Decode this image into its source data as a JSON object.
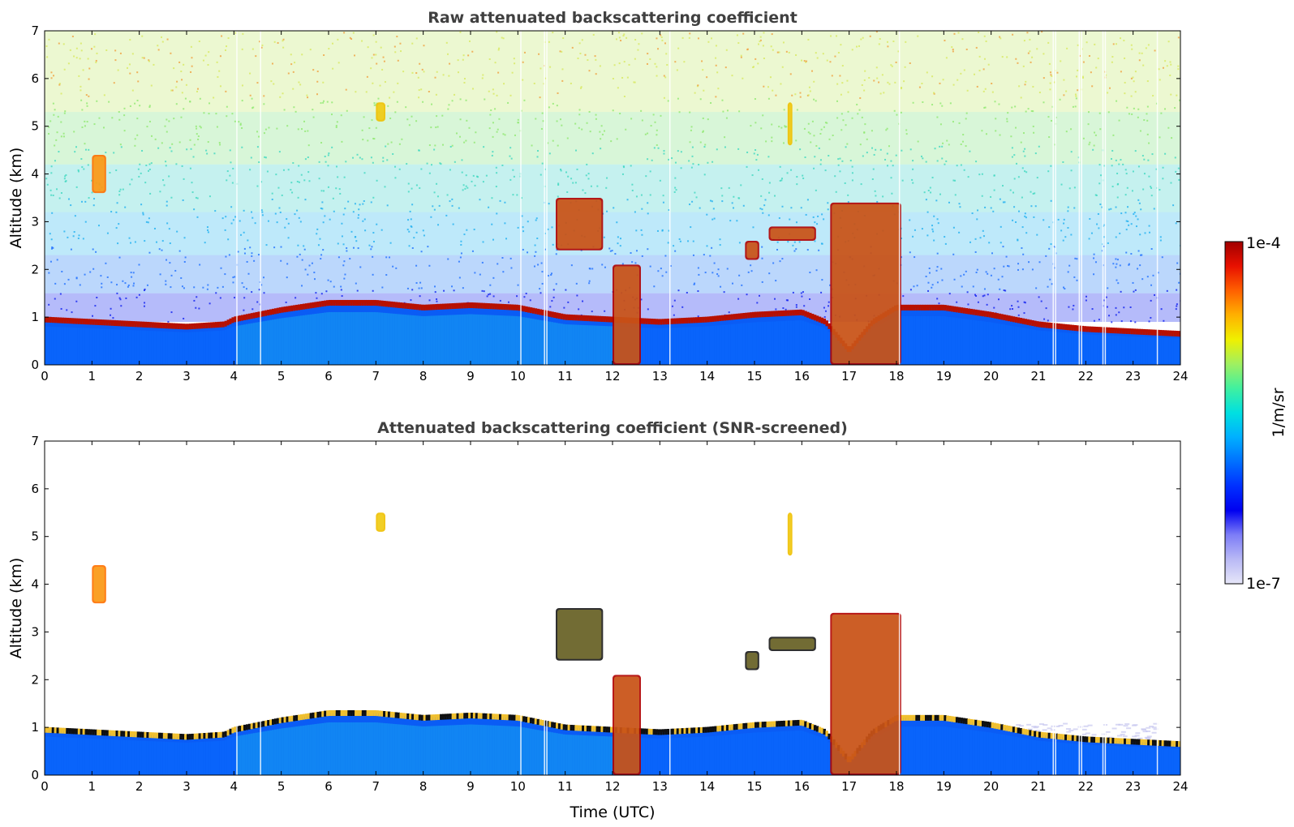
{
  "chart_data": [
    {
      "type": "heatmap",
      "title": "Raw attenuated backscattering coefficient",
      "xlabel": "",
      "ylabel": "Altitude (km)",
      "xlim": [
        0,
        24
      ],
      "ylim": [
        0,
        7
      ],
      "x_ticks": [
        "0",
        "1",
        "2",
        "3",
        "4",
        "5",
        "6",
        "7",
        "8",
        "9",
        "10",
        "11",
        "12",
        "13",
        "14",
        "15",
        "16",
        "17",
        "18",
        "19",
        "20",
        "21",
        "22",
        "23",
        "24"
      ],
      "y_ticks": [
        "0",
        "1",
        "2",
        "3",
        "4",
        "5",
        "6",
        "7"
      ],
      "boundary_layer_top_km": [
        [
          0,
          0.95
        ],
        [
          1,
          0.9
        ],
        [
          2,
          0.85
        ],
        [
          3,
          0.8
        ],
        [
          3.8,
          0.85
        ],
        [
          4,
          0.95
        ],
        [
          5,
          1.15
        ],
        [
          6,
          1.3
        ],
        [
          7,
          1.3
        ],
        [
          8,
          1.2
        ],
        [
          9,
          1.25
        ],
        [
          10,
          1.2
        ],
        [
          11,
          1.0
        ],
        [
          12,
          0.95
        ],
        [
          13,
          0.9
        ],
        [
          14,
          0.95
        ],
        [
          15,
          1.05
        ],
        [
          16,
          1.1
        ],
        [
          16.5,
          0.9
        ],
        [
          17,
          0.3
        ],
        [
          17.5,
          0.9
        ],
        [
          18,
          1.2
        ],
        [
          19,
          1.2
        ],
        [
          20,
          1.05
        ],
        [
          21,
          0.85
        ],
        [
          22,
          0.75
        ],
        [
          23,
          0.7
        ],
        [
          24,
          0.65
        ]
      ],
      "features": [
        {
          "time_range": [
            1.0,
            1.3
          ],
          "altitude_range": [
            3.6,
            4.4
          ],
          "level": "high"
        },
        {
          "time_range": [
            7.0,
            7.2
          ],
          "altitude_range": [
            5.1,
            5.5
          ],
          "level": "medium"
        },
        {
          "time_range": [
            10.8,
            11.8
          ],
          "altitude_range": [
            2.4,
            3.5
          ],
          "level": "very high"
        },
        {
          "time_range": [
            12.0,
            12.6
          ],
          "altitude_range": [
            0,
            2.1
          ],
          "level": "very high"
        },
        {
          "time_range": [
            14.8,
            15.1
          ],
          "altitude_range": [
            2.2,
            2.6
          ],
          "level": "very high"
        },
        {
          "time_range": [
            15.3,
            16.3
          ],
          "altitude_range": [
            2.6,
            2.9
          ],
          "level": "very high"
        },
        {
          "time_range": [
            16.6,
            18.1
          ],
          "altitude_range": [
            0,
            3.4
          ],
          "level": "very high"
        },
        {
          "time_range": [
            15.7,
            15.8
          ],
          "altitude_range": [
            4.6,
            5.5
          ],
          "level": "medium"
        }
      ]
    },
    {
      "type": "heatmap",
      "title": "Attenuated backscattering coefficient (SNR-screened)",
      "xlabel": "Time (UTC)",
      "ylabel": "Altitude (km)",
      "xlim": [
        0,
        24
      ],
      "ylim": [
        0,
        7
      ],
      "x_ticks": [
        "0",
        "1",
        "2",
        "3",
        "4",
        "5",
        "6",
        "7",
        "8",
        "9",
        "10",
        "11",
        "12",
        "13",
        "14",
        "15",
        "16",
        "17",
        "18",
        "19",
        "20",
        "21",
        "22",
        "23",
        "24"
      ],
      "y_ticks": [
        "0",
        "1",
        "2",
        "3",
        "4",
        "5",
        "6",
        "7"
      ]
    }
  ],
  "colorbar": {
    "label": "1/m/sr",
    "max_label": "1e-4",
    "min_label": "1e-7",
    "colormap": [
      "#e6e6f8",
      "#b9b9f5",
      "#7d7df7",
      "#0000f0",
      "#0030ff",
      "#0070ff",
      "#00b0ff",
      "#00e0e0",
      "#40f0a0",
      "#a0f060",
      "#f0f000",
      "#ffb000",
      "#ff6000",
      "#e81000",
      "#a00000"
    ]
  },
  "colors": {
    "title": "#404040",
    "frame": "#000000",
    "background": "#ffffff"
  }
}
